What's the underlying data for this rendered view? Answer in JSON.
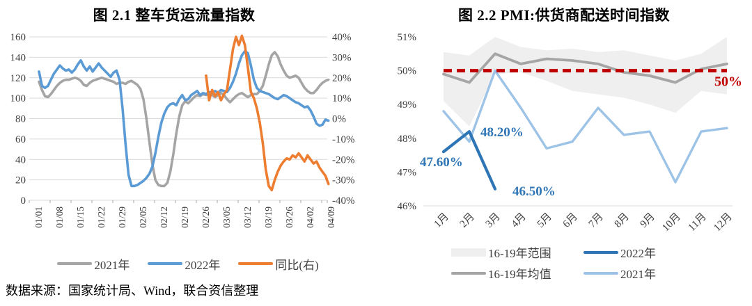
{
  "source_note": "数据来源：国家统计局、Wind，联合资信整理",
  "chart_data": [
    {
      "type": "line",
      "title": "图 2.1  整车货运流量指数",
      "x_tick_labels": [
        "01/01",
        "01/08",
        "01/15",
        "01/22",
        "01/29",
        "02/05",
        "02/12",
        "02/19",
        "02/26",
        "03/05",
        "03/12",
        "03/19",
        "03/26",
        "04/02",
        "04/09"
      ],
      "left_axis": {
        "min": 0,
        "max": 160,
        "label_values": [
          "160",
          "140",
          "120",
          "100",
          "80",
          "60",
          "40",
          "20",
          "0"
        ]
      },
      "right_axis": {
        "min": -40,
        "max": 40,
        "label_values": [
          "40%",
          "30%",
          "20%",
          "10%",
          "0%",
          "-10%",
          "-20%",
          "-30%",
          "-40%"
        ]
      },
      "grid_color": "#D9D9D9",
      "tick_text_color": "#3F3F3F",
      "series": [
        {
          "name": "2021年",
          "color": "#A5A5A5",
          "axis": "left",
          "start_day": 0,
          "values": [
            116,
            108,
            102,
            101,
            104,
            108,
            112,
            115,
            117,
            118,
            118,
            119,
            120,
            119,
            117,
            113,
            112,
            115,
            117,
            118,
            119,
            120,
            119,
            118,
            117,
            116,
            114,
            115,
            115,
            114,
            116,
            117,
            115,
            113,
            109,
            99,
            80,
            57,
            35,
            20,
            15,
            14,
            14,
            17,
            28,
            45,
            65,
            82,
            93,
            97,
            95,
            98,
            101,
            103,
            102,
            104,
            103,
            104,
            103,
            101,
            103,
            105,
            103,
            99,
            96,
            99,
            102,
            104,
            105,
            103,
            101,
            103,
            104,
            104,
            107,
            112,
            122,
            133,
            142,
            145,
            141,
            133,
            127,
            122,
            120,
            121,
            122,
            120,
            115,
            110,
            107,
            105,
            105,
            108,
            112,
            115,
            117,
            118
          ]
        },
        {
          "name": "2022年",
          "color": "#5B9BD5",
          "axis": "left",
          "start_day": 0,
          "values": [
            126,
            112,
            110,
            112,
            118,
            124,
            128,
            132,
            129,
            127,
            128,
            125,
            128,
            133,
            137,
            131,
            127,
            131,
            126,
            130,
            134,
            130,
            127,
            124,
            121,
            125,
            127,
            118,
            90,
            55,
            25,
            14,
            14,
            15,
            17,
            19,
            22,
            26,
            33,
            46,
            62,
            76,
            85,
            91,
            94,
            95,
            93,
            99,
            103,
            98,
            99,
            103,
            105,
            107,
            103,
            105,
            104,
            106,
            105,
            107,
            105,
            108,
            107,
            106,
            110,
            116,
            124,
            134,
            142,
            146,
            144,
            132,
            118,
            110,
            107,
            106,
            105,
            104,
            102,
            100,
            99,
            101,
            103,
            102,
            100,
            98,
            96,
            95,
            93,
            91,
            92,
            88,
            82,
            75,
            73,
            74,
            79,
            78
          ]
        },
        {
          "name": "同比(右)",
          "color": "#ED7D31",
          "axis": "right",
          "start_day": 56,
          "values": [
            21,
            9,
            14,
            11,
            13,
            9,
            12,
            14,
            24,
            34,
            40,
            36,
            40.5,
            36,
            25,
            13,
            10,
            5,
            -2,
            -12,
            -25,
            -33,
            -35,
            -30,
            -26,
            -23,
            -21,
            -19.5,
            -20,
            -18,
            -19,
            -17,
            -19,
            -21,
            -18,
            -20,
            -22,
            -21,
            -24,
            -26,
            -28,
            -32
          ]
        }
      ],
      "legend": [
        {
          "label": "2021年",
          "color": "#A5A5A5",
          "type": "line"
        },
        {
          "label": "2022年",
          "color": "#5B9BD5",
          "type": "line"
        },
        {
          "label": "同比(右)",
          "color": "#ED7D31",
          "type": "line"
        }
      ]
    },
    {
      "type": "line",
      "title": "图 2.2  PMI:供货商配送时间指数",
      "categories": [
        "1月",
        "2月",
        "3月",
        "4月",
        "5月",
        "6月",
        "7月",
        "8月",
        "9月",
        "10月",
        "11月",
        "12月"
      ],
      "y_axis": {
        "min": 46,
        "max": 51,
        "label_values": [
          "51%",
          "50%",
          "49%",
          "48%",
          "47%",
          "46%"
        ]
      },
      "grid_color": "#D9D9D9",
      "tick_text_color": "#3F3F3F",
      "band": {
        "name": "16-19年范围",
        "color": "#EFEFEF",
        "upper": [
          50.55,
          50.45,
          51.0,
          50.7,
          50.6,
          50.65,
          50.55,
          50.6,
          50.45,
          50.3,
          50.5,
          51.0
        ],
        "lower": [
          49.1,
          48.35,
          49.9,
          49.95,
          49.7,
          49.4,
          49.3,
          49.2,
          49.0,
          48.75,
          49.4,
          49.3
        ]
      },
      "series": [
        {
          "name": "16-19年均值",
          "color": "#A5A5A5",
          "width": 3.8,
          "values": [
            49.9,
            49.65,
            50.5,
            50.2,
            50.35,
            50.3,
            50.2,
            49.95,
            49.85,
            49.65,
            50.05,
            50.2
          ]
        },
        {
          "name": "2021年",
          "color": "#9DC3E6",
          "width": 3.4,
          "values": [
            48.8,
            47.9,
            50.0,
            48.9,
            47.7,
            47.9,
            48.9,
            48.1,
            48.2,
            46.7,
            48.2,
            48.3
          ]
        },
        {
          "name": "2022年",
          "color": "#2E75B6",
          "width": 4.2,
          "values": [
            47.6,
            48.2,
            46.5
          ]
        }
      ],
      "reference_line": {
        "value": 50,
        "color": "#C00000",
        "label": "50%"
      },
      "annotations": [
        {
          "text": "47.60%",
          "color": "#2E75B6",
          "x": 63,
          "y": 203
        },
        {
          "text": "48.20%",
          "color": "#2E75B6",
          "x": 150,
          "y": 160
        },
        {
          "text": "46.50%",
          "color": "#2E75B6",
          "x": 196,
          "y": 245
        }
      ],
      "legend": [
        {
          "label": "16-19年范围",
          "color": "#EFEFEF",
          "type": "band"
        },
        {
          "label": "2022年",
          "color": "#2E75B6",
          "type": "line"
        },
        {
          "label": "16-19年均值",
          "color": "#A5A5A5",
          "type": "line"
        },
        {
          "label": "2021年",
          "color": "#9DC3E6",
          "type": "line"
        }
      ]
    }
  ]
}
